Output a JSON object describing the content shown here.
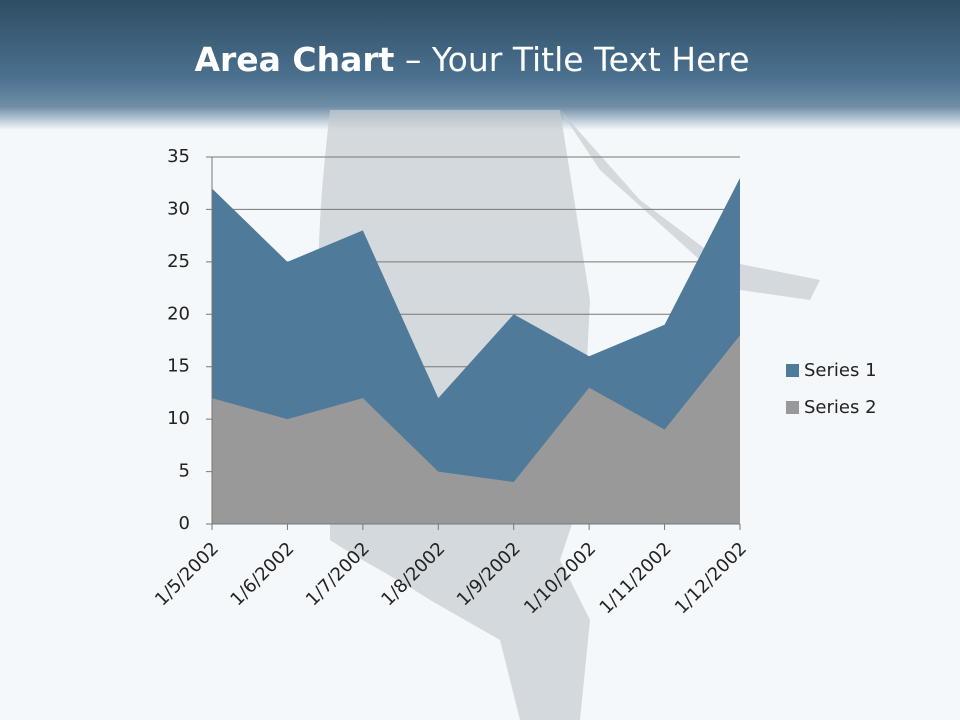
{
  "slide": {
    "title_bold": "Area Chart",
    "title_rest": "– Your Title Text Here"
  },
  "chart_data": {
    "type": "area",
    "categories": [
      "1/5/2002",
      "1/6/2002",
      "1/7/2002",
      "1/8/2002",
      "1/9/2002",
      "1/10/2002",
      "1/11/2002",
      "1/12/2002"
    ],
    "series": [
      {
        "name": "Series 1",
        "color": "#4f7a99",
        "values": [
          32,
          25,
          28,
          12,
          20,
          16,
          19,
          33
        ]
      },
      {
        "name": "Series 2",
        "color": "#999999",
        "values": [
          12,
          10,
          12,
          5,
          4,
          13,
          9,
          18
        ]
      }
    ],
    "ylim": [
      0,
      35
    ],
    "yticks": [
      0,
      5,
      10,
      15,
      20,
      25,
      30,
      35
    ],
    "grid": true,
    "legend": "right"
  }
}
